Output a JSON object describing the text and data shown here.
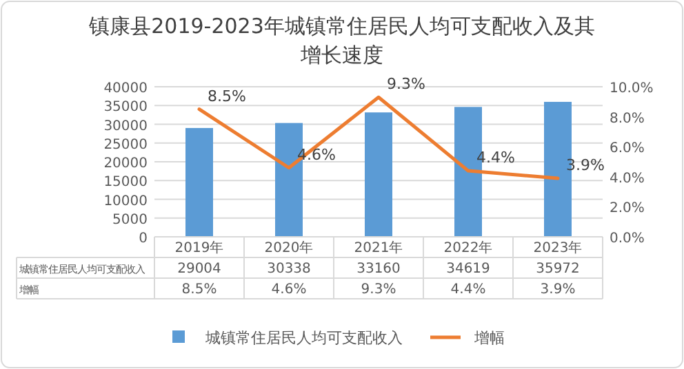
{
  "chart_data": {
    "type": "bar",
    "title": "镇康县2019-2023年城镇常住居民人均可支配收入及其增长速度",
    "categories": [
      "2019年",
      "2020年",
      "2021年",
      "2022年",
      "2023年"
    ],
    "series": [
      {
        "name": "城镇常住居民人均可支配收入",
        "color": "#5b9bd5",
        "values": [
          29004,
          30338,
          33160,
          34619,
          35972
        ],
        "value_labels": [
          "29004",
          "30338",
          "33160",
          "34619",
          "35972"
        ]
      },
      {
        "name": "增幅",
        "type": "line",
        "axis": "y2",
        "color": "#ed7d31",
        "values": [
          8.5,
          4.6,
          9.3,
          4.4,
          3.9
        ],
        "value_labels": [
          "8.5%",
          "4.6%",
          "9.3%",
          "4.4%",
          "3.9%"
        ]
      }
    ],
    "ylim": [
      0,
      40000
    ],
    "yticks": [
      0,
      5000,
      10000,
      15000,
      20000,
      25000,
      30000,
      35000,
      40000
    ],
    "y2lim": [
      0,
      10
    ],
    "y2ticks": [
      {
        "value": 0,
        "label": "0.0%"
      },
      {
        "value": 2,
        "label": "2.0%"
      },
      {
        "value": 4,
        "label": "4.0%"
      },
      {
        "value": 6,
        "label": "6.0%"
      },
      {
        "value": 8,
        "label": "8.0%"
      },
      {
        "value": 10,
        "label": "10.0%"
      }
    ],
    "grid": "y",
    "legend": "bottom"
  }
}
